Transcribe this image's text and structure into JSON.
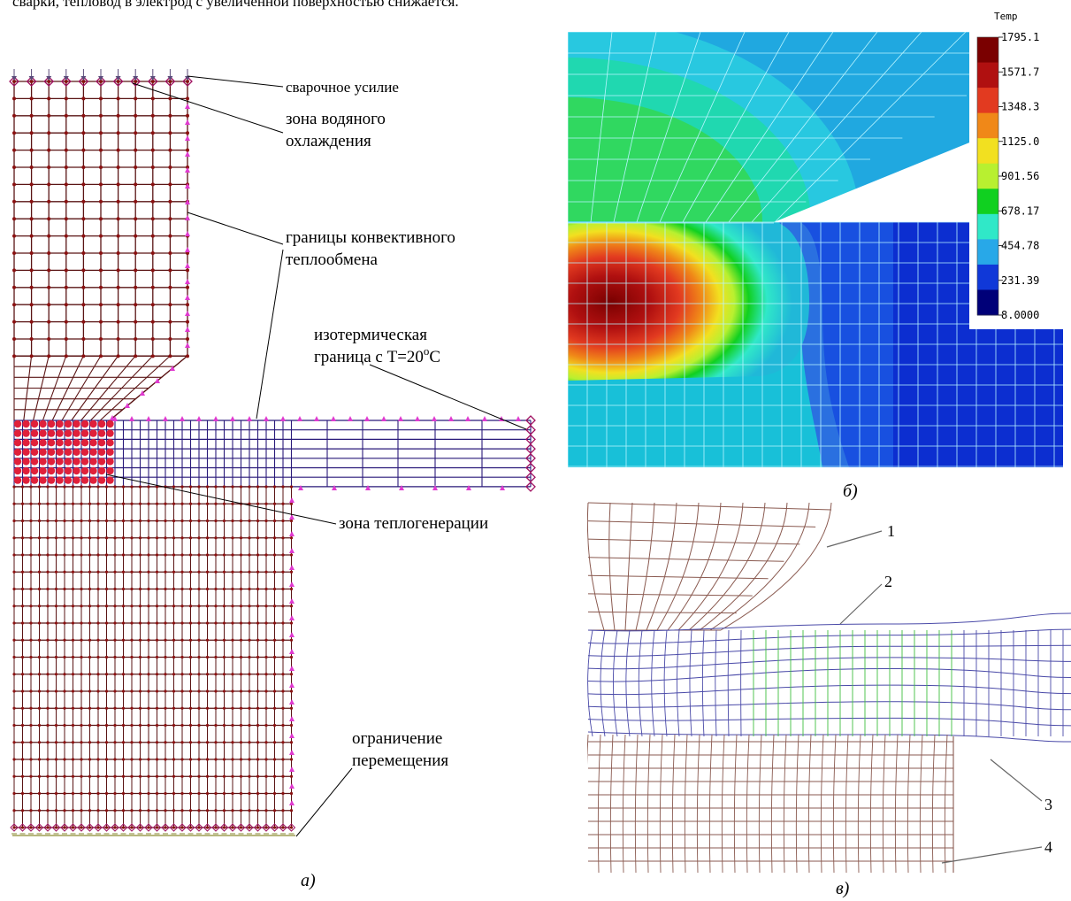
{
  "top_text": "сварки, тепловод в электрод с увеличенной поверхностью снижается.",
  "panel_a": {
    "label": "а)",
    "annotations": {
      "weld_force": "сварочное усилие",
      "water_cooling_1": "зона водяного",
      "water_cooling_2": "охлаждения",
      "convective_1": "границы конвективного",
      "convective_2": "теплообмена",
      "isothermal_1": "изотермическая",
      "isothermal_2": "граница с T=20",
      "isothermal_deg": "o",
      "isothermal_unit": "C",
      "heat_generation": "зона теплогенерации",
      "displacement_1": "ограничение",
      "displacement_2": "перемещения"
    },
    "colors": {
      "electrode_mesh": "#5a1414",
      "sheet_mesh": "#2a1a7a",
      "node": "#8a1010",
      "convective_marker": "#e03ad0",
      "heat_node": "#e0203a",
      "boundary_node": "#a01060"
    }
  },
  "panel_b": {
    "label": "б)",
    "legend": {
      "title": "Temp",
      "values": [
        "1795.1",
        "1571.7",
        "1348.3",
        "1125.0",
        "901.56",
        "678.17",
        "454.78",
        "231.39",
        "8.0000"
      ],
      "colors": [
        "#7a0000",
        "#b01010",
        "#e23a20",
        "#f08818",
        "#f2e020",
        "#b8f030",
        "#10d020",
        "#30e8c8",
        "#28a8e8",
        "#1038d8",
        "#000078"
      ]
    }
  },
  "panel_c": {
    "label": "в)",
    "callouts": [
      "1",
      "2",
      "3",
      "4"
    ],
    "colors": {
      "electrode": "#8a5a50",
      "sheet": "#4a4aa8",
      "weld": "#40c040"
    }
  }
}
